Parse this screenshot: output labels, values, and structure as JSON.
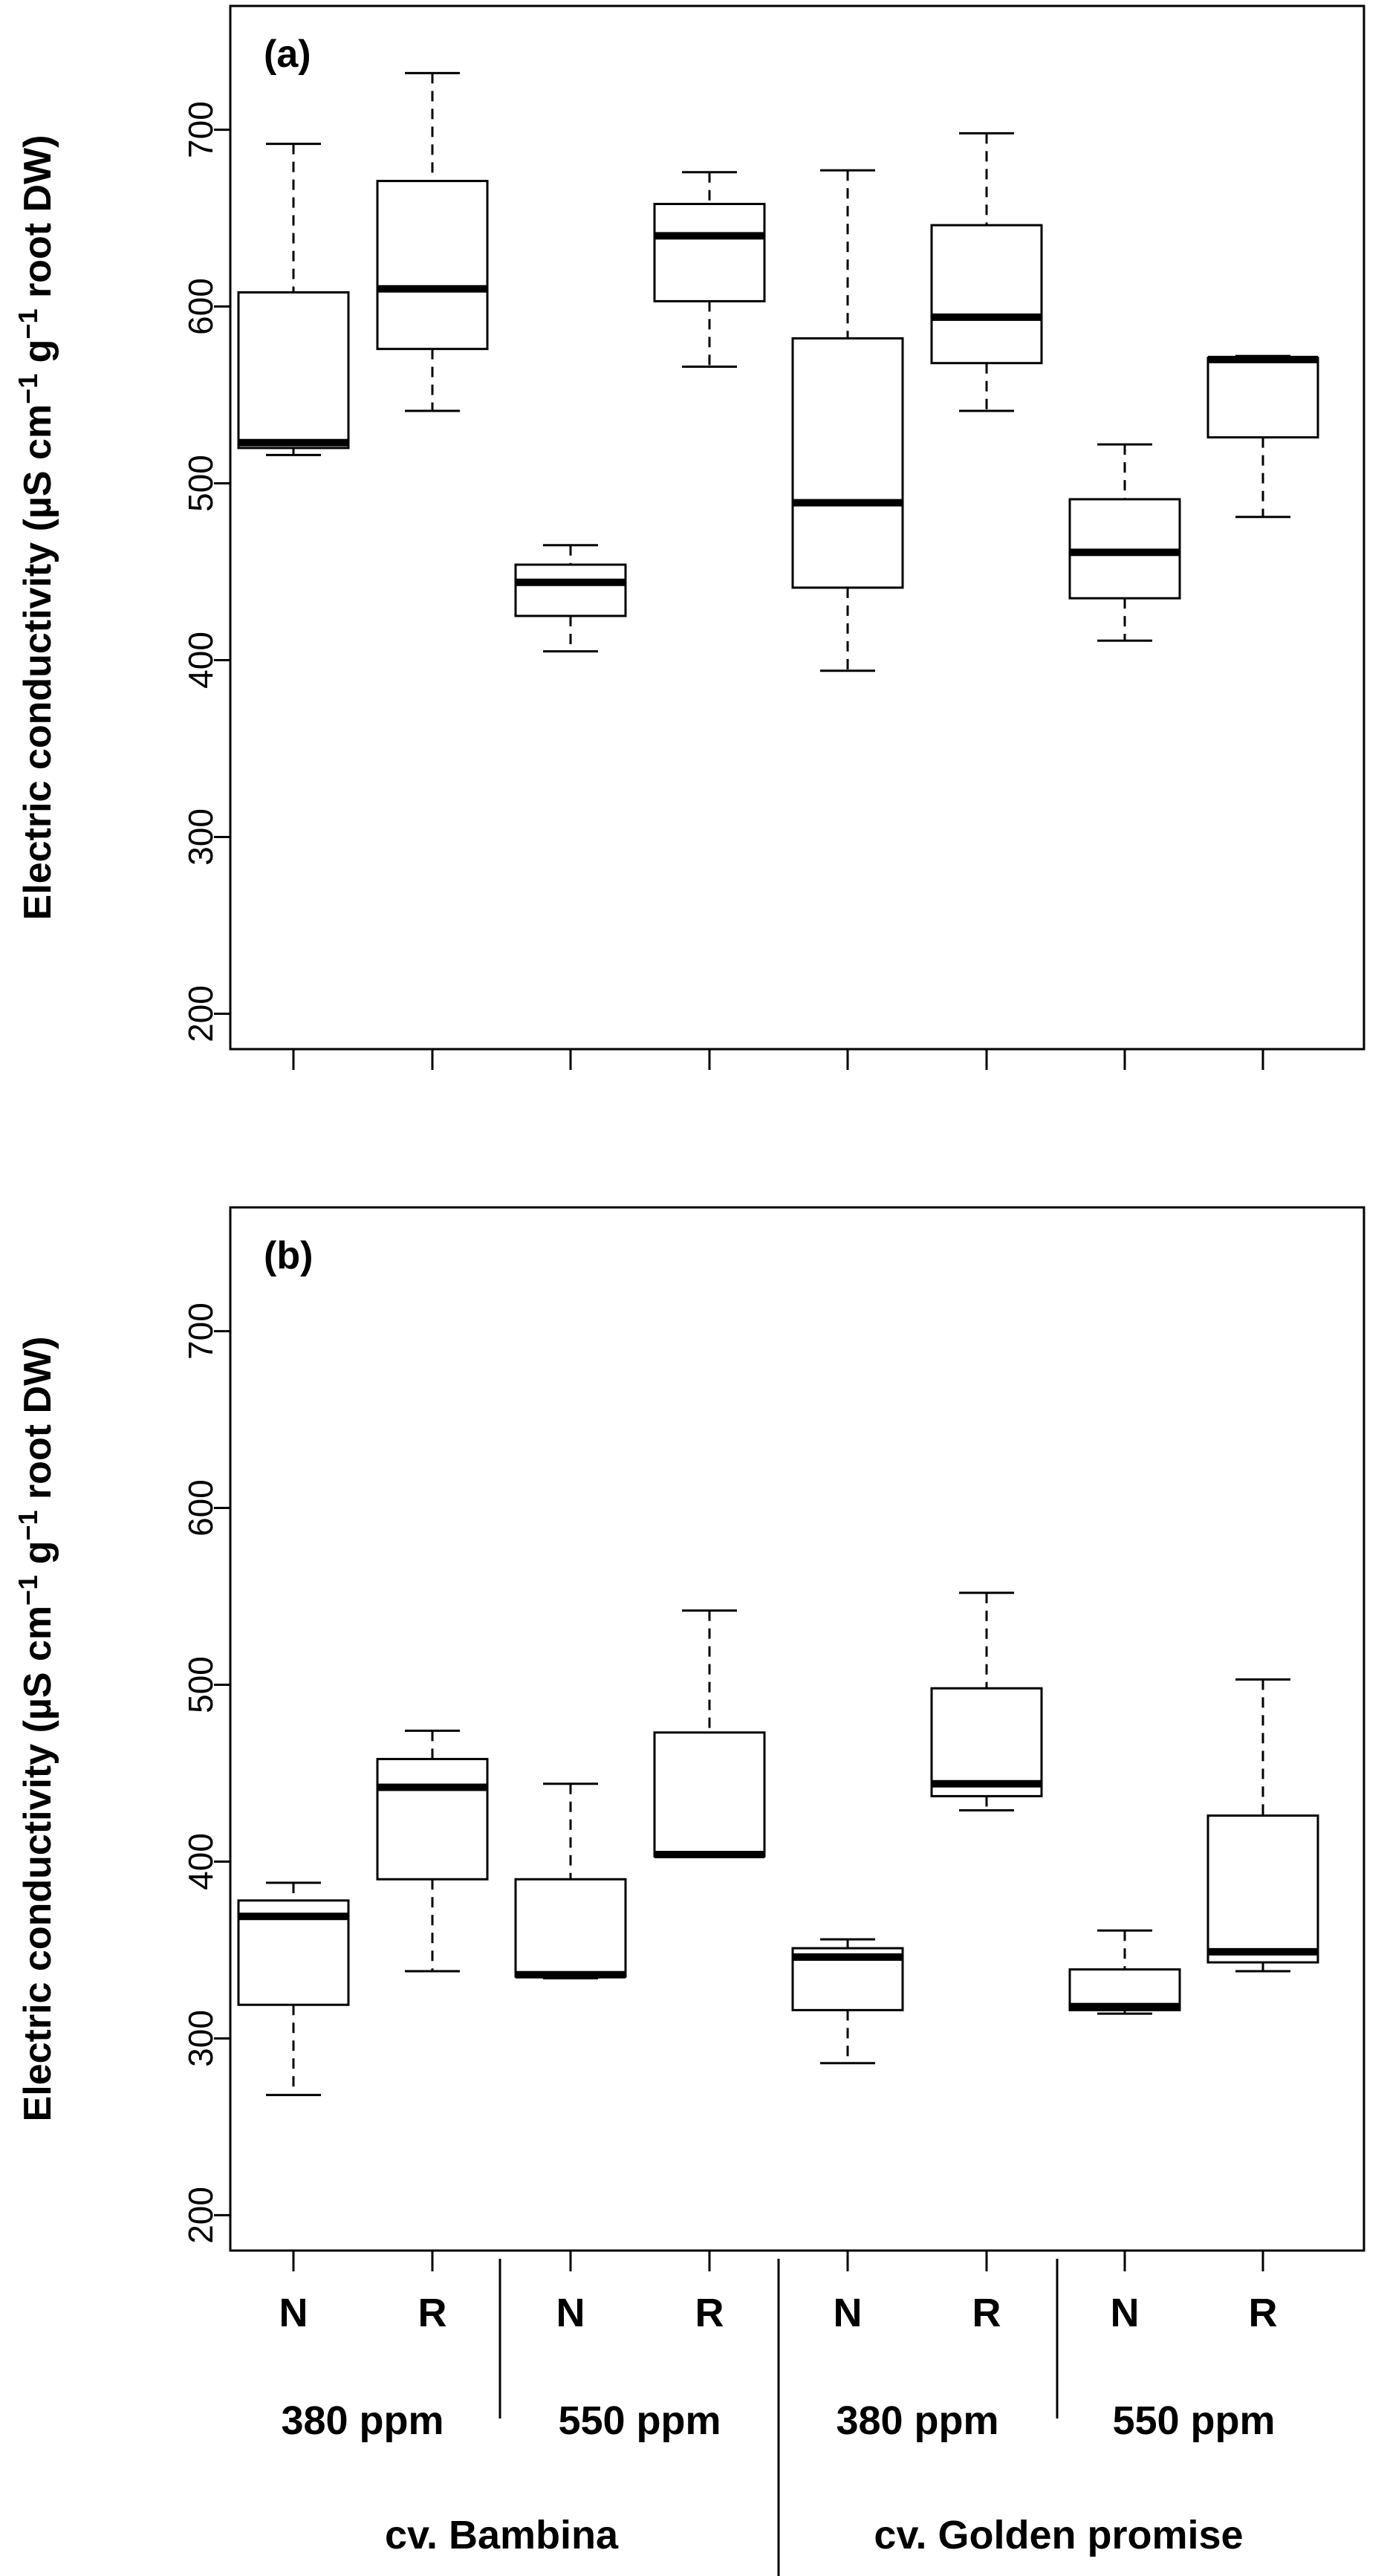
{
  "chart_data": [
    {
      "type": "box",
      "panel_label": "(a)",
      "ylabel": "Electric conductivity (µS cm−1 g−1 root DW)",
      "ylabel_parts": [
        "Electric conductivity (µS cm",
        "−1",
        " g",
        "−1",
        " root DW)"
      ],
      "ylim": [
        180,
        770
      ],
      "yticks": [
        200,
        300,
        400,
        500,
        600,
        700
      ],
      "categories": [
        "N",
        "R",
        "N",
        "R",
        "N",
        "R",
        "N",
        "R"
      ],
      "boxes": [
        {
          "min": 516,
          "q1": 520,
          "median": 523,
          "q3": 608,
          "max": 692
        },
        {
          "min": 541,
          "q1": 576,
          "median": 610,
          "q3": 671,
          "max": 732
        },
        {
          "min": 405,
          "q1": 425,
          "median": 444,
          "q3": 454,
          "max": 465
        },
        {
          "min": 566,
          "q1": 603,
          "median": 640,
          "q3": 658,
          "max": 676
        },
        {
          "min": 394,
          "q1": 441,
          "median": 489,
          "q3": 582,
          "max": 677
        },
        {
          "min": 541,
          "q1": 568,
          "median": 594,
          "q3": 646,
          "max": 698
        },
        {
          "min": 411,
          "q1": 435,
          "median": 461,
          "q3": 491,
          "max": 522
        },
        {
          "min": 481,
          "q1": 526,
          "median": 570,
          "q3": 571,
          "max": 572
        }
      ]
    },
    {
      "type": "box",
      "panel_label": "(b)",
      "ylabel": "Electric conductivity (µS cm−1 g−1 root DW)",
      "ylabel_parts": [
        "Electric conductivity (µS cm",
        "−1",
        " g",
        "−1",
        " root DW)"
      ],
      "ylim": [
        180,
        770
      ],
      "yticks": [
        200,
        300,
        400,
        500,
        600,
        700
      ],
      "categories": [
        "N",
        "R",
        "N",
        "R",
        "N",
        "R",
        "N",
        "R"
      ],
      "boxes": [
        {
          "min": 268,
          "q1": 319,
          "median": 369,
          "q3": 378,
          "max": 388
        },
        {
          "min": 338,
          "q1": 390,
          "median": 442,
          "q3": 458,
          "max": 474
        },
        {
          "min": 334,
          "q1": 335,
          "median": 336,
          "q3": 390,
          "max": 444
        },
        {
          "min": 403,
          "q1": 403,
          "median": 404,
          "q3": 473,
          "max": 542
        },
        {
          "min": 286,
          "q1": 316,
          "median": 346,
          "q3": 351,
          "max": 356
        },
        {
          "min": 429,
          "q1": 437,
          "median": 444,
          "q3": 498,
          "max": 552
        },
        {
          "min": 314,
          "q1": 316,
          "median": 318,
          "q3": 339,
          "max": 361
        },
        {
          "min": 338,
          "q1": 343,
          "median": 349,
          "q3": 426,
          "max": 503
        }
      ]
    }
  ],
  "x_groups": {
    "concentrations": [
      "380 ppm",
      "550 ppm",
      "380 ppm",
      "550 ppm"
    ],
    "cultivars": [
      "cv. Bambina",
      "cv. Golden promise"
    ]
  }
}
